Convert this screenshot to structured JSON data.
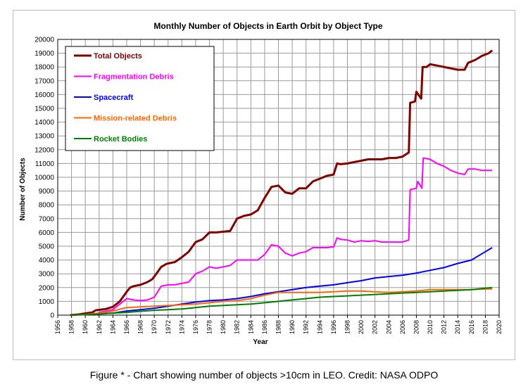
{
  "chart_data": {
    "type": "line",
    "title": "Monthly Number of Objects in Earth Orbit by Object Type",
    "xlabel": "Year",
    "ylabel": "Number of Objects",
    "xlim": [
      1956,
      2020
    ],
    "ylim": [
      0,
      20000
    ],
    "x_ticks": [
      "1956",
      "1958",
      "1960",
      "1962",
      "1964",
      "1966",
      "1968",
      "1970",
      "1972",
      "1974",
      "1976",
      "1978",
      "1980",
      "1982",
      "1984",
      "1986",
      "1988",
      "1990",
      "1992",
      "1994",
      "1996",
      "1998",
      "2000",
      "2002",
      "2004",
      "2006",
      "2008",
      "2010",
      "2012",
      "2014",
      "2016",
      "2018",
      "2020"
    ],
    "y_ticks": [
      "0",
      "1000",
      "2000",
      "3000",
      "4000",
      "5000",
      "6000",
      "7000",
      "8000",
      "9000",
      "10000",
      "11000",
      "12000",
      "13000",
      "14000",
      "15000",
      "16000",
      "17000",
      "18000",
      "19000",
      "20000"
    ],
    "grid": true,
    "legend_position": "top-left",
    "series": [
      {
        "name": "Total Objects",
        "color": "#800000",
        "points": [
          [
            1957.8,
            0
          ],
          [
            1959,
            50
          ],
          [
            1961,
            200
          ],
          [
            1961.5,
            350
          ],
          [
            1963,
            450
          ],
          [
            1964,
            600
          ],
          [
            1965,
            1000
          ],
          [
            1966,
            1700
          ],
          [
            1966.5,
            2000
          ],
          [
            1967,
            2100
          ],
          [
            1968,
            2200
          ],
          [
            1969,
            2400
          ],
          [
            1969.7,
            2600
          ],
          [
            1970,
            2800
          ],
          [
            1971,
            3500
          ],
          [
            1971.7,
            3700
          ],
          [
            1972,
            3750
          ],
          [
            1973,
            3850
          ],
          [
            1974,
            4200
          ],
          [
            1975,
            4600
          ],
          [
            1976,
            5300
          ],
          [
            1977,
            5500
          ],
          [
            1978,
            6000
          ],
          [
            1979,
            6000
          ],
          [
            1980,
            6050
          ],
          [
            1981,
            6100
          ],
          [
            1982,
            7000
          ],
          [
            1983,
            7200
          ],
          [
            1984,
            7300
          ],
          [
            1985,
            7600
          ],
          [
            1986,
            8500
          ],
          [
            1987,
            9300
          ],
          [
            1988,
            9400
          ],
          [
            1989,
            8900
          ],
          [
            1990,
            8800
          ],
          [
            1991,
            9200
          ],
          [
            1992,
            9200
          ],
          [
            1993,
            9700
          ],
          [
            1994,
            9900
          ],
          [
            1995,
            10100
          ],
          [
            1996,
            10200
          ],
          [
            1996.5,
            11000
          ],
          [
            1997,
            10950
          ],
          [
            1998,
            11000
          ],
          [
            1999,
            11100
          ],
          [
            2000,
            11200
          ],
          [
            2001,
            11300
          ],
          [
            2002,
            11300
          ],
          [
            2003,
            11300
          ],
          [
            2004,
            11400
          ],
          [
            2005,
            11400
          ],
          [
            2006,
            11500
          ],
          [
            2006.9,
            11800
          ],
          [
            2007.1,
            15400
          ],
          [
            2007.8,
            15500
          ],
          [
            2008,
            16200
          ],
          [
            2008.7,
            15700
          ],
          [
            2008.9,
            18000
          ],
          [
            2009.5,
            18000
          ],
          [
            2010,
            18200
          ],
          [
            2011,
            18100
          ],
          [
            2012,
            18000
          ],
          [
            2013,
            17900
          ],
          [
            2014,
            17800
          ],
          [
            2015,
            17800
          ],
          [
            2015.5,
            18300
          ],
          [
            2016.5,
            18500
          ],
          [
            2017.5,
            18800
          ],
          [
            2018.5,
            19000
          ],
          [
            2019,
            19200
          ]
        ]
      },
      {
        "name": "Fragmentation Debris",
        "color": "#ff00ff",
        "points": [
          [
            1961.5,
            0
          ],
          [
            1962,
            200
          ],
          [
            1963,
            300
          ],
          [
            1964,
            400
          ],
          [
            1965,
            800
          ],
          [
            1966,
            1200
          ],
          [
            1967,
            1100
          ],
          [
            1968,
            1050
          ],
          [
            1969,
            1100
          ],
          [
            1970,
            1300
          ],
          [
            1971,
            2100
          ],
          [
            1972,
            2200
          ],
          [
            1973,
            2200
          ],
          [
            1974,
            2300
          ],
          [
            1975,
            2400
          ],
          [
            1976,
            3000
          ],
          [
            1977,
            3200
          ],
          [
            1978,
            3500
          ],
          [
            1979,
            3400
          ],
          [
            1980,
            3500
          ],
          [
            1981,
            3600
          ],
          [
            1982,
            4000
          ],
          [
            1983,
            4000
          ],
          [
            1984,
            4000
          ],
          [
            1985,
            4000
          ],
          [
            1986,
            4400
          ],
          [
            1987,
            5100
          ],
          [
            1988,
            5000
          ],
          [
            1989,
            4500
          ],
          [
            1990,
            4300
          ],
          [
            1991,
            4500
          ],
          [
            1992,
            4600
          ],
          [
            1993,
            4900
          ],
          [
            1994,
            4900
          ],
          [
            1995,
            4900
          ],
          [
            1996,
            4950
          ],
          [
            1996.5,
            5600
          ],
          [
            1997,
            5500
          ],
          [
            1998,
            5450
          ],
          [
            1999,
            5300
          ],
          [
            2000,
            5400
          ],
          [
            2001,
            5350
          ],
          [
            2002,
            5400
          ],
          [
            2003,
            5300
          ],
          [
            2004,
            5300
          ],
          [
            2005,
            5300
          ],
          [
            2006,
            5300
          ],
          [
            2006.9,
            5450
          ],
          [
            2007.1,
            9100
          ],
          [
            2008,
            9200
          ],
          [
            2008.2,
            9700
          ],
          [
            2008.8,
            9200
          ],
          [
            2009,
            11400
          ],
          [
            2010,
            11300
          ],
          [
            2011,
            11000
          ],
          [
            2012,
            10800
          ],
          [
            2013,
            10500
          ],
          [
            2014,
            10300
          ],
          [
            2015,
            10200
          ],
          [
            2015.5,
            10600
          ],
          [
            2016.5,
            10600
          ],
          [
            2017.5,
            10500
          ],
          [
            2019,
            10500
          ]
        ]
      },
      {
        "name": "Spacecraft",
        "color": "#0000ff",
        "points": [
          [
            1957.8,
            0
          ],
          [
            1960,
            50
          ],
          [
            1962,
            100
          ],
          [
            1964,
            150
          ],
          [
            1966,
            300
          ],
          [
            1968,
            400
          ],
          [
            1970,
            500
          ],
          [
            1972,
            650
          ],
          [
            1974,
            800
          ],
          [
            1976,
            950
          ],
          [
            1978,
            1050
          ],
          [
            1980,
            1100
          ],
          [
            1982,
            1200
          ],
          [
            1984,
            1350
          ],
          [
            1986,
            1550
          ],
          [
            1988,
            1700
          ],
          [
            1990,
            1850
          ],
          [
            1992,
            2000
          ],
          [
            1994,
            2100
          ],
          [
            1996,
            2200
          ],
          [
            1998,
            2350
          ],
          [
            2000,
            2500
          ],
          [
            2002,
            2700
          ],
          [
            2004,
            2800
          ],
          [
            2006,
            2900
          ],
          [
            2008,
            3050
          ],
          [
            2010,
            3250
          ],
          [
            2012,
            3450
          ],
          [
            2014,
            3750
          ],
          [
            2016,
            4000
          ],
          [
            2017,
            4300
          ],
          [
            2018,
            4600
          ],
          [
            2019,
            4900
          ]
        ]
      },
      {
        "name": "Mission-related Debris",
        "color": "#ff6600",
        "points": [
          [
            1957.8,
            0
          ],
          [
            1960,
            50
          ],
          [
            1962,
            150
          ],
          [
            1964,
            300
          ],
          [
            1966,
            550
          ],
          [
            1968,
            600
          ],
          [
            1970,
            650
          ],
          [
            1972,
            700
          ],
          [
            1974,
            750
          ],
          [
            1976,
            800
          ],
          [
            1978,
            900
          ],
          [
            1980,
            1000
          ],
          [
            1982,
            1050
          ],
          [
            1984,
            1200
          ],
          [
            1986,
            1450
          ],
          [
            1988,
            1650
          ],
          [
            1990,
            1650
          ],
          [
            1992,
            1650
          ],
          [
            1994,
            1650
          ],
          [
            1996,
            1700
          ],
          [
            1998,
            1750
          ],
          [
            2000,
            1750
          ],
          [
            2002,
            1700
          ],
          [
            2004,
            1650
          ],
          [
            2006,
            1700
          ],
          [
            2008,
            1750
          ],
          [
            2010,
            1850
          ],
          [
            2012,
            1850
          ],
          [
            2014,
            1850
          ],
          [
            2016,
            1850
          ],
          [
            2018,
            1900
          ],
          [
            2019,
            1900
          ]
        ]
      },
      {
        "name": "Rocket Bodies",
        "color": "#008000",
        "points": [
          [
            1957.8,
            0
          ],
          [
            1960,
            30
          ],
          [
            1962,
            80
          ],
          [
            1964,
            150
          ],
          [
            1966,
            200
          ],
          [
            1968,
            280
          ],
          [
            1970,
            350
          ],
          [
            1972,
            400
          ],
          [
            1974,
            450
          ],
          [
            1976,
            550
          ],
          [
            1978,
            650
          ],
          [
            1980,
            700
          ],
          [
            1982,
            750
          ],
          [
            1984,
            800
          ],
          [
            1986,
            900
          ],
          [
            1988,
            1000
          ],
          [
            1990,
            1100
          ],
          [
            1992,
            1200
          ],
          [
            1994,
            1300
          ],
          [
            1996,
            1350
          ],
          [
            1998,
            1400
          ],
          [
            2000,
            1450
          ],
          [
            2002,
            1500
          ],
          [
            2004,
            1550
          ],
          [
            2006,
            1600
          ],
          [
            2008,
            1650
          ],
          [
            2010,
            1700
          ],
          [
            2012,
            1750
          ],
          [
            2014,
            1800
          ],
          [
            2016,
            1850
          ],
          [
            2018,
            1950
          ],
          [
            2019,
            2000
          ]
        ]
      }
    ]
  },
  "caption": "Figure * - Chart showing number of objects >10cm in LEO.  Credit: NASA ODPO"
}
